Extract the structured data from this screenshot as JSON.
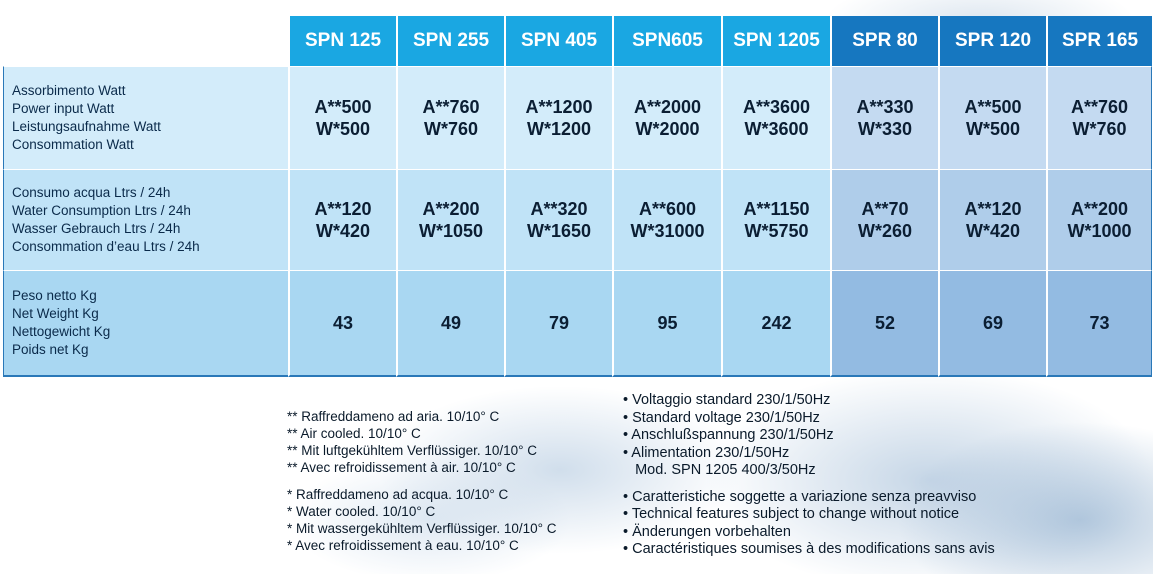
{
  "columns": [
    {
      "name": "SPN 125",
      "group": "spn"
    },
    {
      "name": "SPN 255",
      "group": "spn"
    },
    {
      "name": "SPN 405",
      "group": "spn"
    },
    {
      "name": "SPN605",
      "group": "spn"
    },
    {
      "name": "SPN 1205",
      "group": "spn"
    },
    {
      "name": "SPR 80",
      "group": "spr"
    },
    {
      "name": "SPR 120",
      "group": "spr"
    },
    {
      "name": "SPR 165",
      "group": "spr"
    }
  ],
  "rows": [
    {
      "labels": [
        "Assorbimento Watt",
        "Power input Watt",
        "Leistungsaufnahme Watt",
        "Consommation Watt"
      ],
      "values": [
        [
          "A**500",
          "W*500"
        ],
        [
          "A**760",
          "W*760"
        ],
        [
          "A**1200",
          "W*1200"
        ],
        [
          "A**2000",
          "W*2000"
        ],
        [
          "A**3600",
          "W*3600"
        ],
        [
          "A**330",
          "W*330"
        ],
        [
          "A**500",
          "W*500"
        ],
        [
          "A**760",
          "W*760"
        ]
      ]
    },
    {
      "labels": [
        "Consumo acqua Ltrs / 24h",
        "Water Consumption Ltrs / 24h",
        "Wasser Gebrauch Ltrs / 24h",
        "Consommation d’eau Ltrs / 24h"
      ],
      "values": [
        [
          "A**120",
          "W*420"
        ],
        [
          "A**200",
          "W*1050"
        ],
        [
          "A**320",
          "W*1650"
        ],
        [
          "A**600",
          "W*31000"
        ],
        [
          "A**1150",
          "W*5750"
        ],
        [
          "A**70",
          "W*260"
        ],
        [
          "A**120",
          "W*420"
        ],
        [
          "A**200",
          "W*1000"
        ]
      ]
    },
    {
      "labels": [
        "Peso netto Kg",
        "Net Weight Kg",
        "Nettogewicht Kg",
        "Poids net Kg"
      ],
      "values": [
        [
          "43"
        ],
        [
          "49"
        ],
        [
          "79"
        ],
        [
          "95"
        ],
        [
          "242"
        ],
        [
          "52"
        ],
        [
          "69"
        ],
        [
          "73"
        ]
      ]
    }
  ],
  "notes_left": {
    "air": [
      "** Raffreddameno ad aria. 10/10° C",
      "** Air cooled. 10/10° C",
      "** Mit luftgekühltem Verflüssiger. 10/10° C",
      "** Avec refroidissement à air. 10/10° C"
    ],
    "water": [
      "* Raffreddameno ad acqua. 10/10° C",
      "* Water cooled. 10/10° C",
      "* Mit wassergekühltem Verflüssiger. 10/10° C",
      "* Avec refroidissement à eau. 10/10° C"
    ]
  },
  "notes_right": {
    "voltage": [
      "• Voltaggio standard 230/1/50Hz",
      "• Standard voltage 230/1/50Hz",
      "• Anschlußspannung 230/1/50Hz",
      "• Alimentation 230/1/50Hz",
      "   Mod. SPN 1205 400/3/50Hz"
    ],
    "changes": [
      "• Caratteristiche soggette a variazione senza preavviso",
      "• Technical features subject to change without notice",
      "• Änderungen vorbehalten",
      "• Caractéristiques soumises à des modifications sans avis"
    ]
  }
}
